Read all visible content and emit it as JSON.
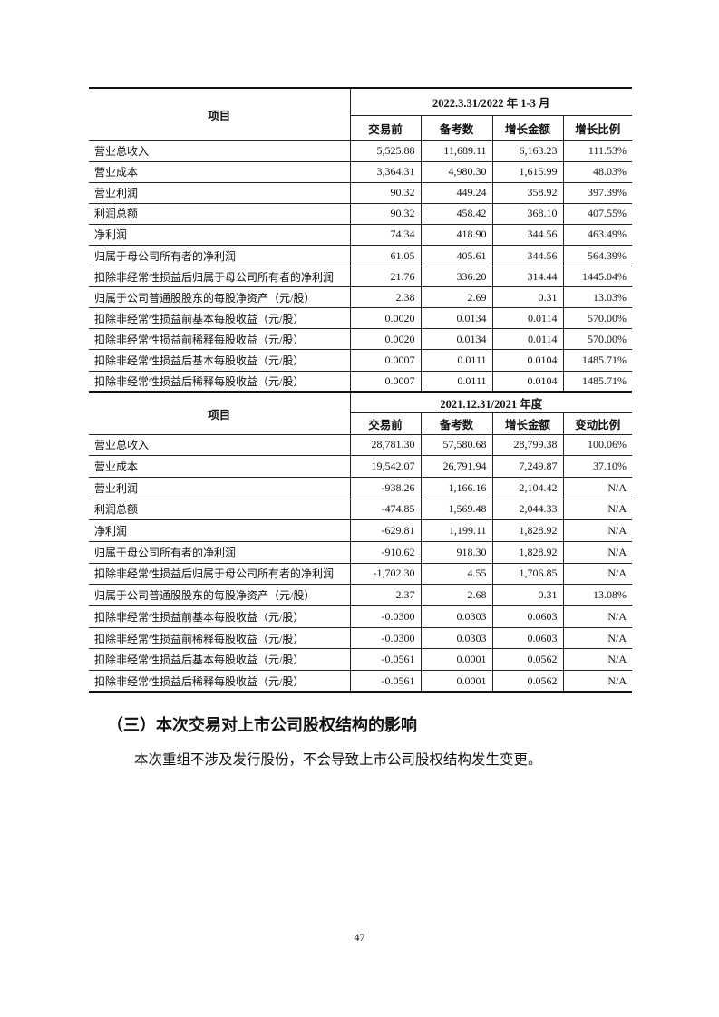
{
  "tables": [
    {
      "period": "2022.3.31/2022 年 1-3 月",
      "item_header": "项目",
      "columns": [
        "交易前",
        "备考数",
        "增长金额",
        "增长比例"
      ],
      "rows": [
        {
          "label": "营业总收入",
          "values": [
            "5,525.88",
            "11,689.11",
            "6,163.23",
            "111.53%"
          ]
        },
        {
          "label": "营业成本",
          "values": [
            "3,364.31",
            "4,980.30",
            "1,615.99",
            "48.03%"
          ]
        },
        {
          "label": "营业利润",
          "values": [
            "90.32",
            "449.24",
            "358.92",
            "397.39%"
          ]
        },
        {
          "label": "利润总额",
          "values": [
            "90.32",
            "458.42",
            "368.10",
            "407.55%"
          ]
        },
        {
          "label": "净利润",
          "values": [
            "74.34",
            "418.90",
            "344.56",
            "463.49%"
          ]
        },
        {
          "label": "归属于母公司所有者的净利润",
          "values": [
            "61.05",
            "405.61",
            "344.56",
            "564.39%"
          ]
        },
        {
          "label": "扣除非经常性损益后归属于母公司所有者的净利润",
          "values": [
            "21.76",
            "336.20",
            "314.44",
            "1445.04%"
          ]
        },
        {
          "label": "归属于公司普通股股东的每股净资产（元/股）",
          "values": [
            "2.38",
            "2.69",
            "0.31",
            "13.03%"
          ]
        },
        {
          "label": "扣除非经常性损益前基本每股收益（元/股）",
          "values": [
            "0.0020",
            "0.0134",
            "0.0114",
            "570.00%"
          ]
        },
        {
          "label": "扣除非经常性损益前稀释每股收益（元/股）",
          "values": [
            "0.0020",
            "0.0134",
            "0.0114",
            "570.00%"
          ]
        },
        {
          "label": "扣除非经常性损益后基本每股收益（元/股）",
          "values": [
            "0.0007",
            "0.0111",
            "0.0104",
            "1485.71%"
          ]
        },
        {
          "label": "扣除非经常性损益后稀释每股收益（元/股）",
          "values": [
            "0.0007",
            "0.0111",
            "0.0104",
            "1485.71%"
          ]
        }
      ]
    },
    {
      "period": "2021.12.31/2021 年度",
      "item_header": "项目",
      "columns": [
        "交易前",
        "备考数",
        "增长金额",
        "变动比例"
      ],
      "rows": [
        {
          "label": "营业总收入",
          "values": [
            "28,781.30",
            "57,580.68",
            "28,799.38",
            "100.06%"
          ]
        },
        {
          "label": "营业成本",
          "values": [
            "19,542.07",
            "26,791.94",
            "7,249.87",
            "37.10%"
          ]
        },
        {
          "label": "营业利润",
          "values": [
            "-938.26",
            "1,166.16",
            "2,104.42",
            "N/A"
          ]
        },
        {
          "label": "利润总额",
          "values": [
            "-474.85",
            "1,569.48",
            "2,044.33",
            "N/A"
          ]
        },
        {
          "label": "净利润",
          "values": [
            "-629.81",
            "1,199.11",
            "1,828.92",
            "N/A"
          ]
        },
        {
          "label": "归属于母公司所有者的净利润",
          "values": [
            "-910.62",
            "918.30",
            "1,828.92",
            "N/A"
          ]
        },
        {
          "label": "扣除非经常性损益后归属于母公司所有者的净利润",
          "values": [
            "-1,702.30",
            "4.55",
            "1,706.85",
            "N/A"
          ]
        },
        {
          "label": "归属于公司普通股股东的每股净资产（元/股）",
          "values": [
            "2.37",
            "2.68",
            "0.31",
            "13.08%"
          ]
        },
        {
          "label": "扣除非经常性损益前基本每股收益（元/股）",
          "values": [
            "-0.0300",
            "0.0303",
            "0.0603",
            "N/A"
          ]
        },
        {
          "label": "扣除非经常性损益前稀释每股收益（元/股）",
          "values": [
            "-0.0300",
            "0.0303",
            "0.0603",
            "N/A"
          ]
        },
        {
          "label": "扣除非经常性损益后基本每股收益（元/股）",
          "values": [
            "-0.0561",
            "0.0001",
            "0.0562",
            "N/A"
          ]
        },
        {
          "label": "扣除非经常性损益后稀释每股收益（元/股）",
          "values": [
            "-0.0561",
            "0.0001",
            "0.0562",
            "N/A"
          ]
        }
      ]
    }
  ],
  "section_heading": "（三）本次交易对上市公司股权结构的影响",
  "section_paragraph": "本次重组不涉及发行股份，不会导致上市公司股权结构发生变更。",
  "page_number": "47"
}
